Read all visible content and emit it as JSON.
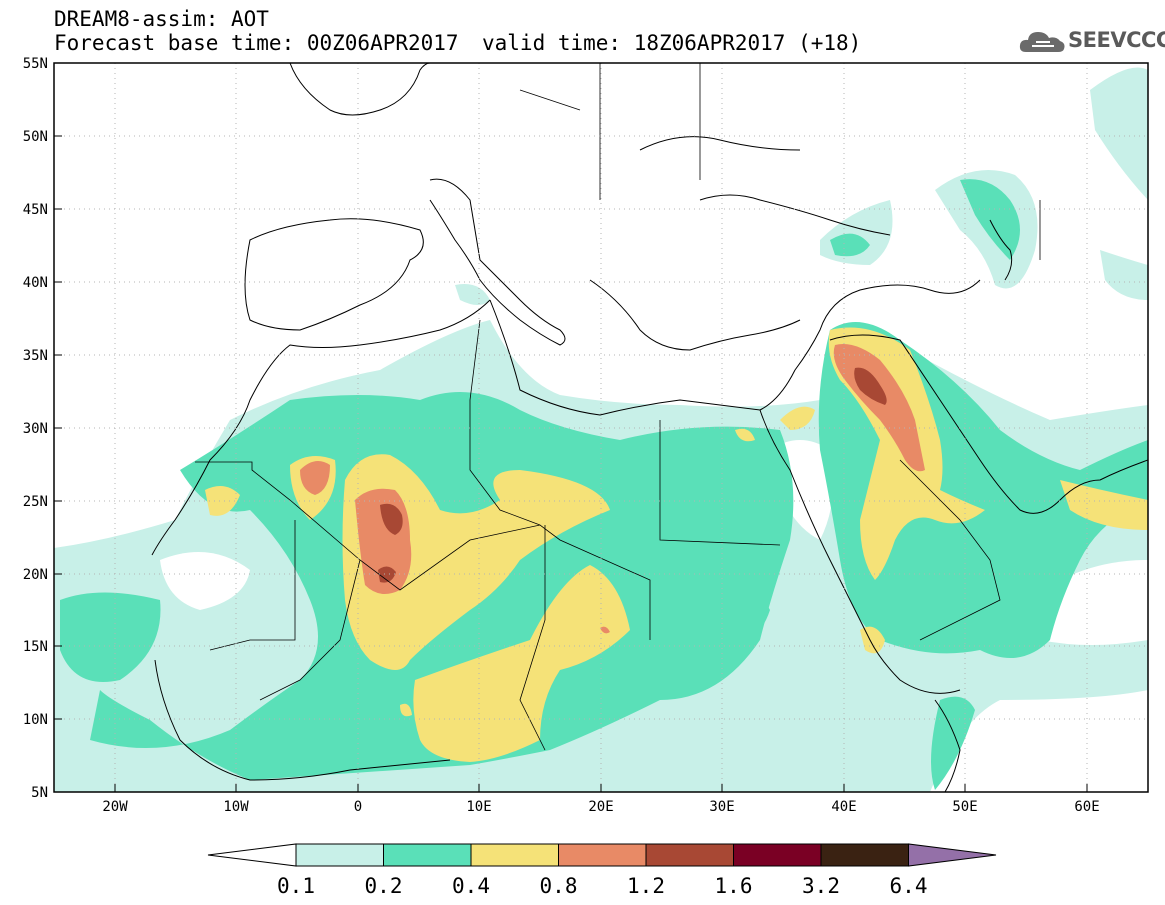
{
  "header": {
    "line1": "DREAM8-assim: AOT",
    "line2": "Forecast base time: 00Z06APR2017",
    "valid": "valid time: 18Z06APR2017 (+18)"
  },
  "logo": {
    "text": "SEEVCCC",
    "icon": "cloud-icon"
  },
  "map": {
    "lon_range": [
      -25,
      65
    ],
    "lat_range": [
      5,
      55
    ],
    "lat_ticks": [
      "55N",
      "50N",
      "45N",
      "40N",
      "35N",
      "30N",
      "25N",
      "20N",
      "15N",
      "10N",
      "5N"
    ],
    "lon_ticks": [
      "20W",
      "10W",
      "0",
      "10E",
      "20E",
      "30E",
      "40E",
      "50E",
      "60E"
    ]
  },
  "colorbar": {
    "labels": [
      "0.1",
      "0.2",
      "0.4",
      "0.8",
      "1.2",
      "1.6",
      "3.2",
      "6.4"
    ],
    "colors": [
      "#ffffff",
      "#c8f0e8",
      "#5ae0b8",
      "#f5e278",
      "#e88a66",
      "#a84834",
      "#7a0024",
      "#3a2212",
      "#9470a8"
    ]
  }
}
